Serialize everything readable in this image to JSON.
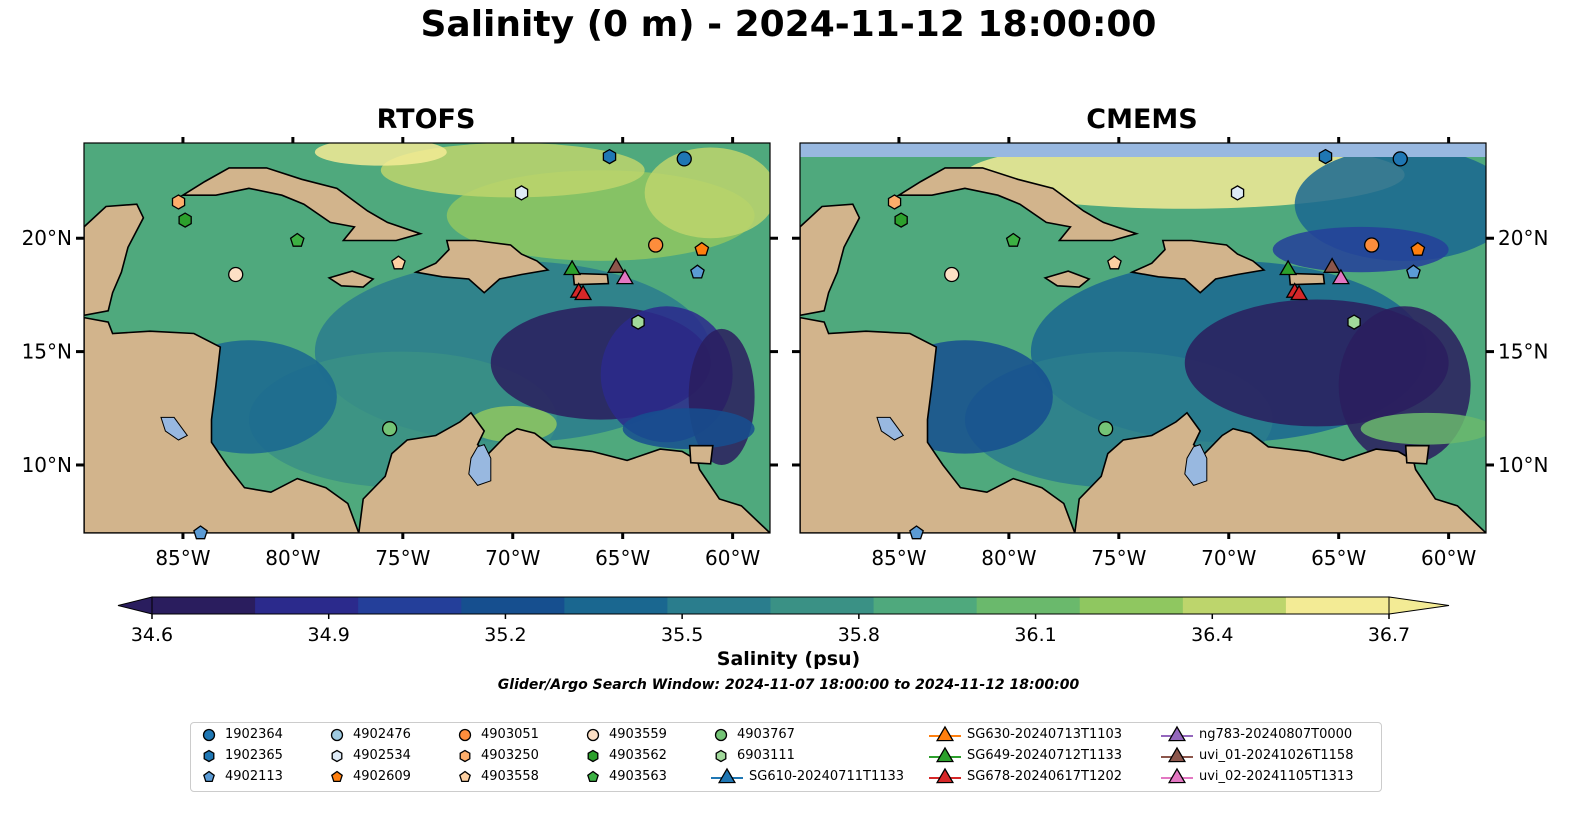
{
  "title": "Salinity (0 m) - 2024-11-12 18:00:00",
  "panels": [
    {
      "id": "rtofs",
      "title": "RTOFS"
    },
    {
      "id": "cmems",
      "title": "CMEMS"
    }
  ],
  "map": {
    "lon_range": [
      -89.5,
      -58.3
    ],
    "lat_range": [
      7.0,
      24.2
    ],
    "lon_ticks": [
      -85,
      -80,
      -75,
      -70,
      -65,
      -60
    ],
    "lon_tick_labels": [
      "85°W",
      "80°W",
      "75°W",
      "70°W",
      "65°W",
      "60°W"
    ],
    "lat_ticks": [
      10,
      15,
      20
    ],
    "lat_tick_labels": [
      "10°N",
      "15°N",
      "20°N"
    ]
  },
  "colorbar": {
    "label": "Salinity (psu)",
    "vmin": 34.6,
    "vmax": 36.7,
    "ticks": [
      "34.6",
      "34.9",
      "35.2",
      "35.5",
      "35.8",
      "36.1",
      "36.4",
      "36.7"
    ],
    "colors": [
      "#2a1d5e",
      "#2b2a8c",
      "#243f9a",
      "#164f8f",
      "#1a6790",
      "#2a7d8d",
      "#3a9185",
      "#4fa97d",
      "#6ab96c",
      "#8fc760",
      "#bdd56c",
      "#f3eb95"
    ],
    "land_color": "#d2b48c",
    "lake_color": "#98b8e0"
  },
  "search_window": "Glider/Argo Search Window: 2024-11-07 18:00:00 to 2024-11-12 18:00:00",
  "legend": [
    {
      "label": "1902364",
      "marker": "circle",
      "color": "#1f77b4"
    },
    {
      "label": "1902365",
      "marker": "hexagon",
      "color": "#1f77b4"
    },
    {
      "label": "4902113",
      "marker": "pentagon",
      "color": "#5b9bd5"
    },
    {
      "label": "4902476",
      "marker": "circle",
      "color": "#9ecae1"
    },
    {
      "label": "4902534",
      "marker": "hexagon",
      "color": "#deebf7"
    },
    {
      "label": "4902609",
      "marker": "pentagon",
      "color": "#ff7f0e"
    },
    {
      "label": "4903051",
      "marker": "circle",
      "color": "#fd8d3c"
    },
    {
      "label": "4903250",
      "marker": "hexagon",
      "color": "#fdae6b"
    },
    {
      "label": "4903558",
      "marker": "pentagon",
      "color": "#fdd0a2"
    },
    {
      "label": "4903559",
      "marker": "circle",
      "color": "#fde0c5"
    },
    {
      "label": "4903562",
      "marker": "hexagon",
      "color": "#2ca02c"
    },
    {
      "label": "4903563",
      "marker": "pentagon",
      "color": "#3cb043"
    },
    {
      "label": "4903767",
      "marker": "circle",
      "color": "#74c476"
    },
    {
      "label": "6903111",
      "marker": "hexagon",
      "color": "#a1d99b"
    },
    {
      "label": "SG610-20240711T1133",
      "marker": "triangle",
      "color": "#1f77b4"
    },
    {
      "label": "SG630-20240713T1103",
      "marker": "triangle",
      "color": "#ff7f0e"
    },
    {
      "label": "SG649-20240712T1133",
      "marker": "triangle",
      "color": "#2ca02c"
    },
    {
      "label": "SG678-20240617T1202",
      "marker": "triangle",
      "color": "#d62728"
    },
    {
      "label": "ng783-20240807T0000",
      "marker": "triangle",
      "color": "#9467bd"
    },
    {
      "label": "uvi_01-20241026T1158",
      "marker": "triangle",
      "color": "#8c564b"
    },
    {
      "label": "uvi_02-20241105T1313",
      "marker": "triangle",
      "color": "#e377c2"
    }
  ],
  "observations": [
    {
      "id": "1902364",
      "lon": -62.2,
      "lat": 23.5
    },
    {
      "id": "1902365",
      "lon": -65.6,
      "lat": 23.6
    },
    {
      "id": "4902113",
      "lon": -61.6,
      "lat": 18.5
    },
    {
      "id": "4902113",
      "lon": -84.2,
      "lat": 7.0
    },
    {
      "id": "4902534",
      "lon": -69.6,
      "lat": 22.0
    },
    {
      "id": "4902609",
      "lon": -61.4,
      "lat": 19.5
    },
    {
      "id": "4903051",
      "lon": -63.5,
      "lat": 19.7
    },
    {
      "id": "4903250",
      "lon": -85.2,
      "lat": 21.6
    },
    {
      "id": "4903558",
      "lon": -75.2,
      "lat": 18.9
    },
    {
      "id": "4903559",
      "lon": -82.6,
      "lat": 18.4
    },
    {
      "id": "4903562",
      "lon": -84.9,
      "lat": 20.8
    },
    {
      "id": "4903563",
      "lon": -79.8,
      "lat": 19.9
    },
    {
      "id": "4903767",
      "lon": -75.6,
      "lat": 11.6
    },
    {
      "id": "6903111",
      "lon": -64.3,
      "lat": 16.3
    },
    {
      "id": "SG649-20240712T1133",
      "lon": -67.3,
      "lat": 18.6
    },
    {
      "id": "SG678-20240617T1202",
      "lon": -67.0,
      "lat": 17.6
    },
    {
      "id": "SG678-20240617T1202",
      "lon": -66.8,
      "lat": 17.5
    },
    {
      "id": "uvi_01-20241026T1158",
      "lon": -65.3,
      "lat": 18.7
    },
    {
      "id": "uvi_02-20241105T1313",
      "lon": -64.9,
      "lat": 18.2
    }
  ]
}
